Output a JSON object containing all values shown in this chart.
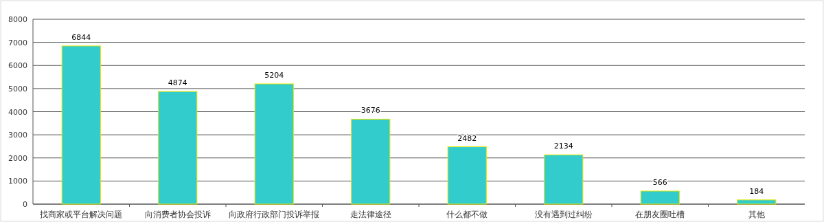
{
  "chart_data": {
    "type": "bar",
    "categories": [
      "找商家或平台解决问题",
      "向消费者协会投诉",
      "向政府行政部门投诉举报",
      "走法律途径",
      "什么都不做",
      "没有遇到过纠纷",
      "在朋友圈吐槽",
      "其他"
    ],
    "values": [
      6844,
      4874,
      5204,
      3676,
      2482,
      2134,
      566,
      184
    ],
    "color": "#33cccc",
    "ylim": [
      0,
      8000
    ],
    "yticks": [
      0,
      1000,
      2000,
      3000,
      4000,
      5000,
      6000,
      7000,
      8000
    ],
    "grid": "y",
    "data_labels": true
  }
}
